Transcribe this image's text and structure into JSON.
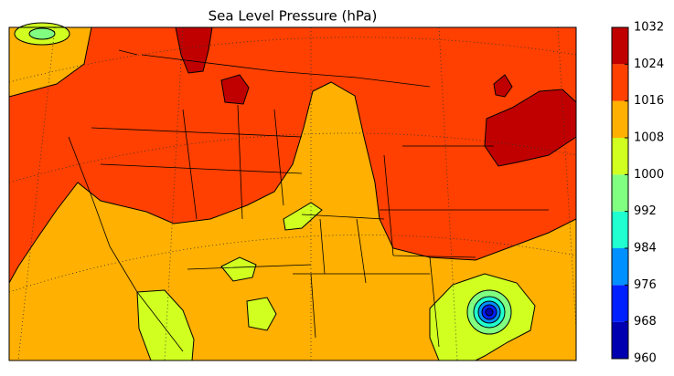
{
  "title": "Sea Level Pressure (hPa)",
  "colorbar": {
    "ticks": [
      960,
      968,
      976,
      984,
      992,
      1000,
      1008,
      1016,
      1024,
      1032
    ],
    "colors": [
      "#0000b0",
      "#0020ff",
      "#0090ff",
      "#20ffd0",
      "#80ff80",
      "#d0ff20",
      "#ffb000",
      "#ff4000",
      "#c00000"
    ]
  }
}
